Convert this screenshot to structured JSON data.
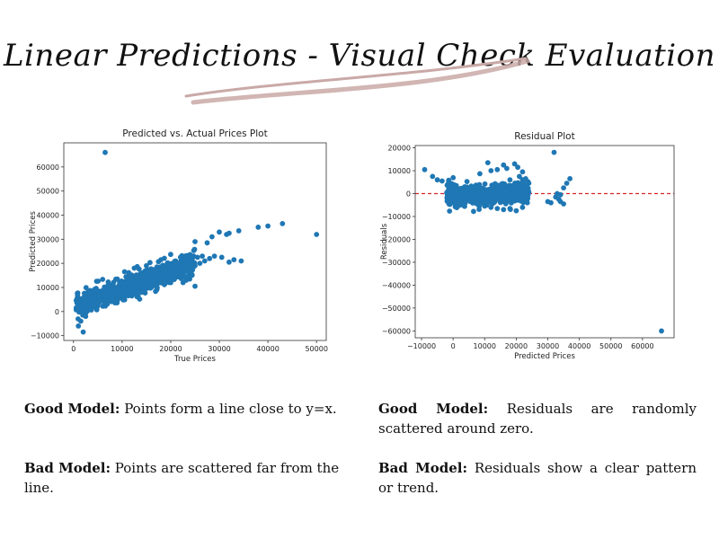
{
  "page": {
    "title": "Linear Predictions - Visual Check Evaluation",
    "colors": {
      "accent": "#c9a9a6",
      "points": "#1f77b4",
      "zero_line": "#d62728"
    }
  },
  "captions": {
    "left_good_label": "Good Model:",
    "left_good_text": "Points form a line close to y=x.",
    "left_bad_label": "Bad Model:",
    "left_bad_text": "Points are scattered far from the line.",
    "right_good_label": "Good Model:",
    "right_good_text": "Residuals are randomly scattered around zero.",
    "right_bad_label": "Bad Model:",
    "right_bad_text": "Residuals show a clear pattern or trend."
  },
  "chart_data": [
    {
      "type": "scatter",
      "title": "Predicted vs. Actual Prices Plot",
      "xlabel": "True Prices",
      "ylabel": "Predicted Prices",
      "xlim": [
        -2000,
        52000
      ],
      "ylim": [
        -12000,
        70000
      ],
      "xticks": [
        0,
        10000,
        20000,
        30000,
        40000,
        50000
      ],
      "yticks": [
        -10000,
        0,
        10000,
        20000,
        30000,
        40000,
        50000,
        60000
      ],
      "grid": false,
      "cluster": {
        "x_range": [
          500,
          25000
        ],
        "trend": "y ≈ 0.75x + 2000",
        "spread": 3000
      },
      "points": [
        [
          6500,
          66000
        ],
        [
          50000,
          32000
        ],
        [
          43000,
          36500
        ],
        [
          38000,
          35000
        ],
        [
          40000,
          35500
        ],
        [
          34000,
          33500
        ],
        [
          32000,
          32500
        ],
        [
          30000,
          33000
        ],
        [
          31500,
          32000
        ],
        [
          28500,
          31000
        ],
        [
          27500,
          28500
        ],
        [
          25000,
          29000
        ],
        [
          25500,
          22500
        ],
        [
          26500,
          23000
        ],
        [
          28000,
          22000
        ],
        [
          29000,
          23000
        ],
        [
          30500,
          22500
        ],
        [
          33000,
          21500
        ],
        [
          34500,
          21000
        ],
        [
          32000,
          20500
        ],
        [
          25000,
          19000
        ],
        [
          24000,
          17000
        ],
        [
          23500,
          21500
        ],
        [
          27000,
          21000
        ],
        [
          26000,
          20000
        ],
        [
          12500,
          18000
        ],
        [
          10500,
          16500
        ],
        [
          15000,
          19000
        ],
        [
          18000,
          21500
        ],
        [
          22000,
          22500
        ],
        [
          25000,
          10500
        ],
        [
          23000,
          14500
        ],
        [
          20000,
          12000
        ],
        [
          2000,
          -8500
        ],
        [
          1000,
          -6000
        ],
        [
          1500,
          -4000
        ],
        [
          2500,
          -2000
        ],
        [
          3000,
          500
        ],
        [
          4000,
          2000
        ],
        [
          1200,
          1000
        ],
        [
          5000,
          4000
        ],
        [
          6000,
          7000
        ],
        [
          7000,
          9000
        ],
        [
          8000,
          11000
        ],
        [
          9000,
          13500
        ],
        [
          3500,
          6000
        ],
        [
          4500,
          8500
        ],
        [
          9000,
          4500
        ],
        [
          12000,
          6500
        ],
        [
          14000,
          8000
        ],
        [
          16000,
          10000
        ],
        [
          18000,
          12000
        ],
        [
          20000,
          14000
        ],
        [
          22000,
          16000
        ],
        [
          21000,
          19500
        ],
        [
          19000,
          18500
        ],
        [
          17000,
          17000
        ],
        [
          11000,
          12500
        ],
        [
          13000,
          14000
        ],
        [
          15000,
          15500
        ]
      ]
    },
    {
      "type": "scatter",
      "title": "Residual Plot",
      "xlabel": "Predicted Prices",
      "ylabel": "Residuals",
      "xlim": [
        -12000,
        70000
      ],
      "ylim": [
        -63000,
        21000
      ],
      "xticks": [
        -10000,
        0,
        10000,
        20000,
        30000,
        40000,
        50000,
        60000
      ],
      "yticks": [
        -60000,
        -50000,
        -40000,
        -30000,
        -20000,
        -10000,
        0,
        10000,
        20000
      ],
      "grid": false,
      "reference_line": {
        "y": 0,
        "style": "dashed"
      },
      "cluster": {
        "x_range": [
          -2000,
          24000
        ],
        "trend": "residual ≈ 0.06 × (x − 8000)",
        "spread": 2800
      },
      "points": [
        [
          66000,
          -60000
        ],
        [
          32000,
          18000
        ],
        [
          -9000,
          10500
        ],
        [
          -6500,
          7500
        ],
        [
          -3500,
          5500
        ],
        [
          -5000,
          6000
        ],
        [
          -1500,
          4500
        ],
        [
          37000,
          6500
        ],
        [
          36000,
          4500
        ],
        [
          35000,
          2500
        ],
        [
          33000,
          0
        ],
        [
          32500,
          -1500
        ],
        [
          31000,
          -4000
        ],
        [
          34000,
          -3500
        ],
        [
          35000,
          -4500
        ],
        [
          30000,
          -3500
        ],
        [
          33500,
          -2500
        ],
        [
          34000,
          -500
        ],
        [
          11000,
          13500
        ],
        [
          16000,
          12500
        ],
        [
          19500,
          13000
        ],
        [
          20500,
          11500
        ],
        [
          14000,
          10500
        ],
        [
          17000,
          11000
        ],
        [
          12000,
          10000
        ],
        [
          22000,
          9500
        ],
        [
          23000,
          6500
        ],
        [
          21000,
          7500
        ],
        [
          24000,
          4500
        ],
        [
          1000,
          3500
        ],
        [
          0,
          2500
        ],
        [
          2000,
          2000
        ],
        [
          3000,
          1500
        ],
        [
          4000,
          -500
        ],
        [
          5000,
          -1500
        ],
        [
          6000,
          -2500
        ],
        [
          7000,
          -3500
        ],
        [
          8000,
          -4500
        ],
        [
          10000,
          -5500
        ],
        [
          12000,
          -6000
        ],
        [
          14000,
          -6500
        ],
        [
          16000,
          -7000
        ],
        [
          18000,
          -6500
        ],
        [
          20000,
          -7500
        ],
        [
          22000,
          -6000
        ],
        [
          23500,
          -4000
        ],
        [
          9000,
          -1000
        ],
        [
          13000,
          -2500
        ],
        [
          15000,
          3000
        ],
        [
          18000,
          6000
        ]
      ]
    }
  ]
}
